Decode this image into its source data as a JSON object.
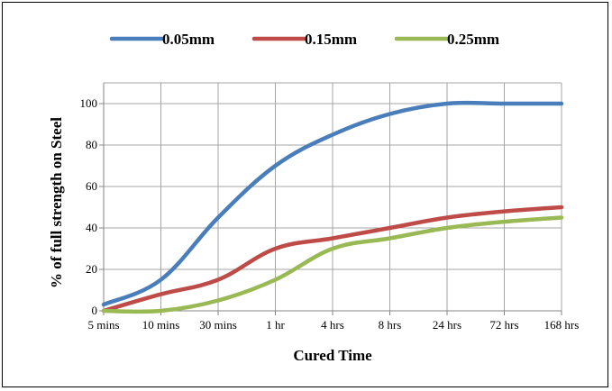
{
  "chart_data": {
    "type": "line",
    "title": "",
    "xlabel": "Cured Time",
    "ylabel": "% of full strength on Steel",
    "categories": [
      "5 mins",
      "10 mins",
      "30 mins",
      "1 hr",
      "4 hrs",
      "8 hrs",
      "24 hrs",
      "72 hrs",
      "168 hrs"
    ],
    "ylim": [
      0,
      100
    ],
    "yticks": [
      0,
      20,
      40,
      60,
      80,
      100
    ],
    "grid": true,
    "legend_position": "top",
    "series": [
      {
        "name": "0.05mm",
        "color": "#4a7ebb",
        "values": [
          3,
          15,
          45,
          70,
          85,
          95,
          100,
          100,
          100
        ]
      },
      {
        "name": "0.15mm",
        "color": "#be4b48",
        "values": [
          0,
          8,
          15,
          30,
          35,
          40,
          45,
          48,
          50
        ]
      },
      {
        "name": "0.25mm",
        "color": "#98b954",
        "values": [
          0,
          0,
          5,
          15,
          30,
          35,
          40,
          43,
          45
        ]
      }
    ]
  }
}
